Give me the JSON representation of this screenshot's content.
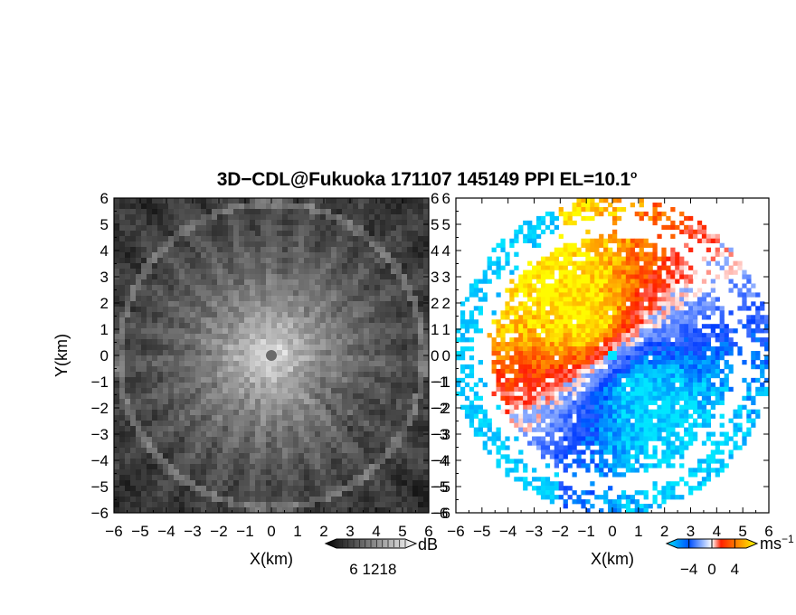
{
  "figure": {
    "title": "3D−CDL@Fukuoka 171107 145149 PPI EL=10.1",
    "title_degree": "o"
  },
  "chart_data": [
    {
      "type": "heatmap",
      "quantity": "SNR",
      "xlabel": "X(km)",
      "ylabel": "Y(km)",
      "xlim": [
        -6,
        6
      ],
      "ylim": [
        -6,
        6
      ],
      "xticks": [
        "−6",
        "−5",
        "−4",
        "−3",
        "−2",
        "−1",
        "0",
        "1",
        "2",
        "3",
        "4",
        "5",
        "6"
      ],
      "yticks": [
        "−6",
        "−5",
        "−4",
        "−3",
        "−2",
        "−1",
        "0",
        "1",
        "2",
        "3",
        "4",
        "5",
        "6"
      ],
      "colorbar": {
        "unit": "dB",
        "ticks": [
          "6",
          "12",
          "18"
        ],
        "range": [
          0,
          24
        ],
        "colors": [
          "#000000",
          "#ffffff"
        ]
      },
      "features": {
        "center_dot": [
          0,
          0
        ],
        "ring_radius_km": 5.8,
        "max_range_km": 6
      }
    },
    {
      "type": "heatmap",
      "quantity": "Doppler velocity",
      "xlabel": "X(km)",
      "ylabel": "",
      "xlim": [
        -6,
        6
      ],
      "ylim": [
        -6,
        6
      ],
      "xticks": [
        "−6",
        "−5",
        "−4",
        "−3",
        "−2",
        "−1",
        "0",
        "1",
        "2",
        "3",
        "4",
        "5",
        "6"
      ],
      "yticks": [
        "−6",
        "−5",
        "−4",
        "−3",
        "−2",
        "−1",
        "0",
        "1",
        "2",
        "3",
        "4",
        "5",
        "6"
      ],
      "colorbar": {
        "unit": "ms",
        "unit_exp": "−1",
        "ticks": [
          "−4",
          "0",
          "4"
        ],
        "range": [
          -6,
          6
        ],
        "colors": [
          "#00e5ff",
          "#0050ff",
          "#ffffff",
          "#ff0000",
          "#ffff00"
        ]
      },
      "features": {
        "max_range_km": 6
      }
    }
  ]
}
